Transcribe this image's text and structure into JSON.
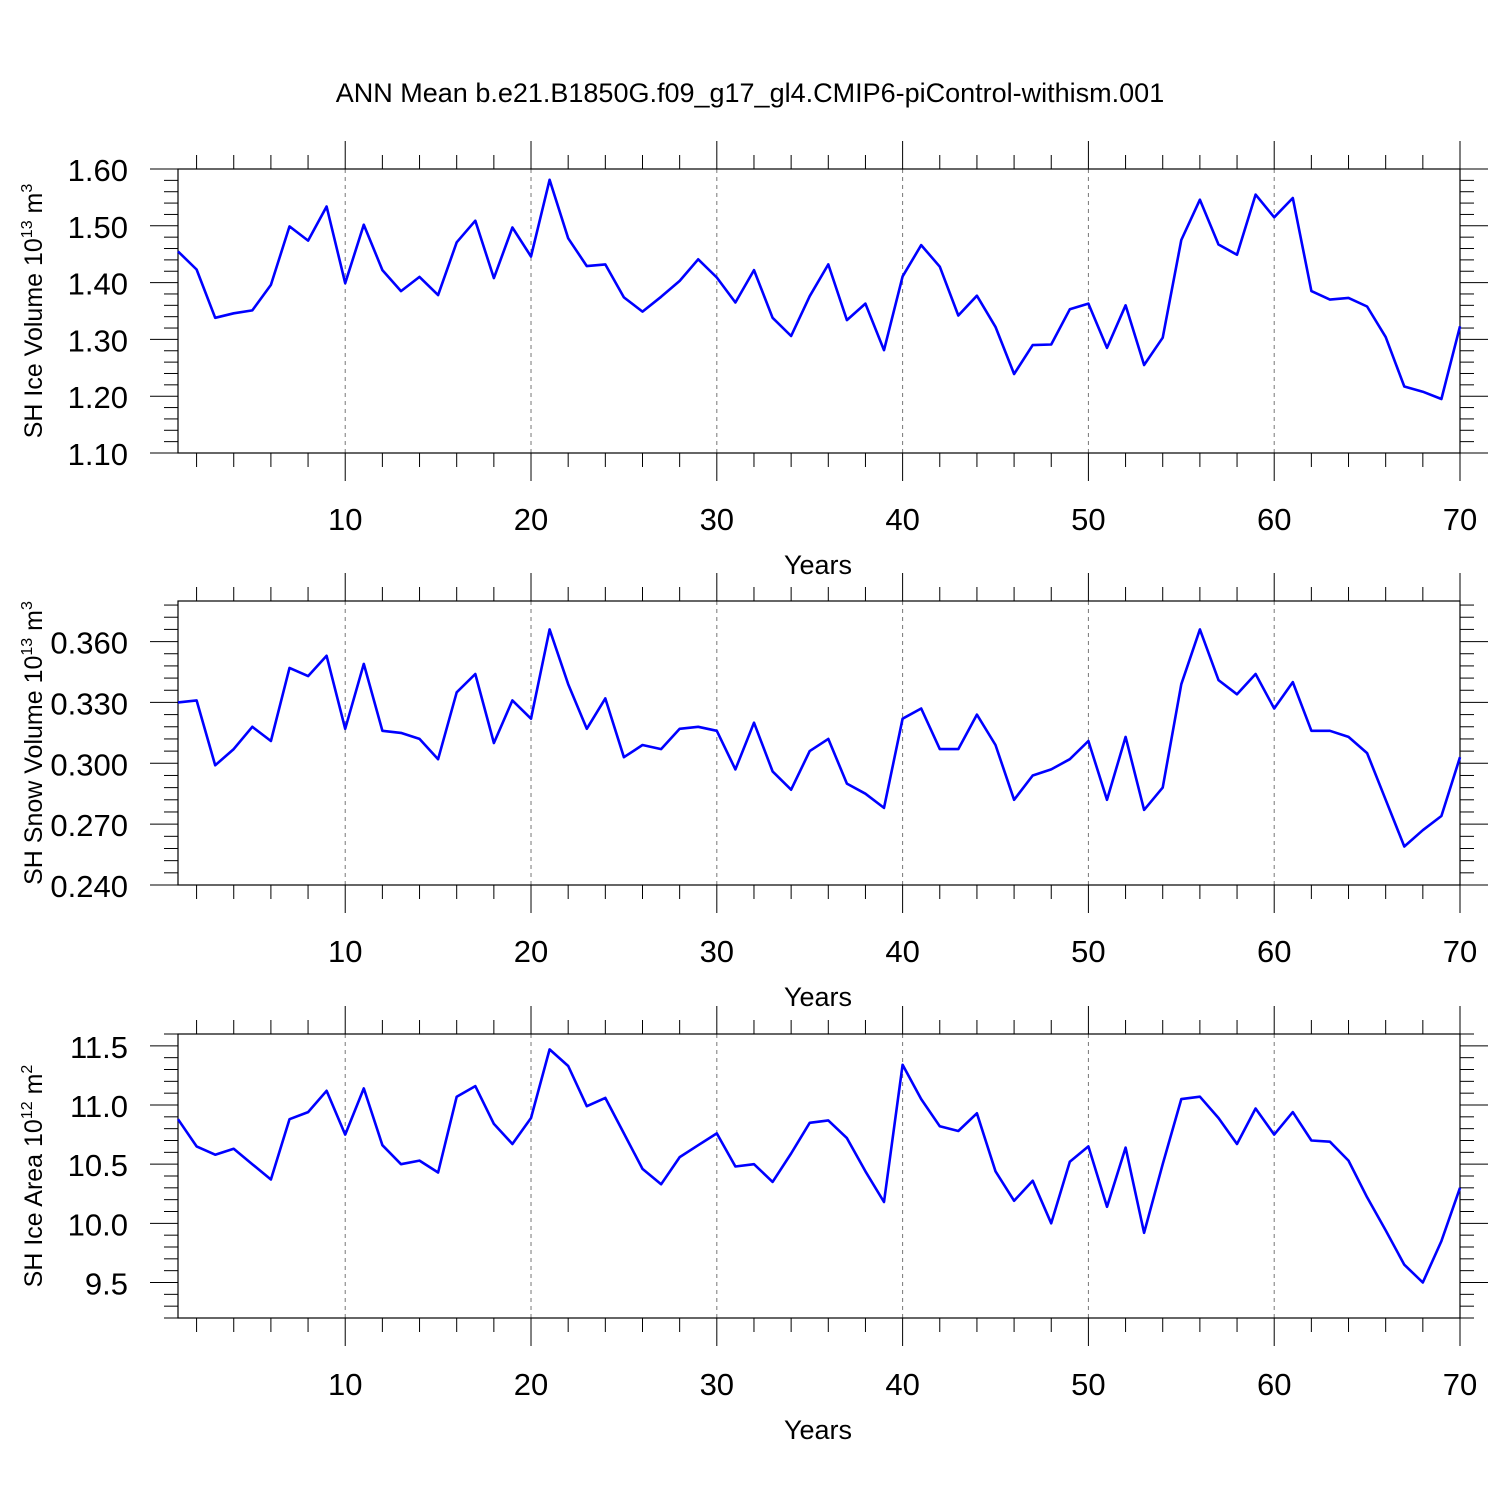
{
  "title": "ANN Mean b.e21.B1850G.f09_g17_gl4.CMIP6-piControl-withism.001",
  "line_color": "#0000ff",
  "chart_data": [
    {
      "type": "line",
      "xlabel": "Years",
      "ylabel": "SH Ice Volume 10",
      "ylabel_sup1": "13",
      "ylabel_mid": " m",
      "ylabel_sup2": "3",
      "xlim": [
        1,
        70
      ],
      "ylim": [
        1.1,
        1.6
      ],
      "xticks": [
        10,
        20,
        30,
        40,
        50,
        60,
        70
      ],
      "yticks": [
        1.1,
        1.2,
        1.3,
        1.4,
        1.5,
        1.6
      ],
      "ytick_labels": [
        "1.10",
        "1.20",
        "1.30",
        "1.40",
        "1.50",
        "1.60"
      ],
      "grid": "vertical dashed at major x ticks",
      "x": [
        1,
        2,
        3,
        4,
        5,
        6,
        7,
        8,
        9,
        10,
        11,
        12,
        13,
        14,
        15,
        16,
        17,
        18,
        19,
        20,
        21,
        22,
        23,
        24,
        25,
        26,
        27,
        28,
        29,
        30,
        31,
        32,
        33,
        34,
        35,
        36,
        37,
        38,
        39,
        40,
        41,
        42,
        43,
        44,
        45,
        46,
        47,
        48,
        49,
        50,
        51,
        52,
        53,
        54,
        55,
        56,
        57,
        58,
        59,
        60,
        61,
        62,
        63,
        64,
        65,
        66,
        67,
        68,
        69,
        70
      ],
      "values": [
        1.455,
        1.423,
        1.338,
        1.346,
        1.351,
        1.396,
        1.499,
        1.474,
        1.534,
        1.399,
        1.502,
        1.422,
        1.385,
        1.41,
        1.378,
        1.471,
        1.509,
        1.408,
        1.497,
        1.446,
        1.581,
        1.478,
        1.429,
        1.432,
        1.374,
        1.349,
        1.375,
        1.403,
        1.441,
        1.409,
        1.365,
        1.422,
        1.338,
        1.306,
        1.376,
        1.432,
        1.334,
        1.363,
        1.281,
        1.411,
        1.466,
        1.428,
        1.342,
        1.377,
        1.322,
        1.239,
        1.29,
        1.291,
        1.353,
        1.363,
        1.285,
        1.36,
        1.255,
        1.303,
        1.475,
        1.546,
        1.467,
        1.449,
        1.555,
        1.515,
        1.549,
        1.385,
        1.37,
        1.373,
        1.358,
        1.304,
        1.217,
        1.208,
        1.195,
        1.323
      ]
    },
    {
      "type": "line",
      "xlabel": "Years",
      "ylabel": "SH Snow Volume 10",
      "ylabel_sup1": "13",
      "ylabel_mid": " m",
      "ylabel_sup2": "3",
      "xlim": [
        1,
        70
      ],
      "ylim": [
        0.24,
        0.38
      ],
      "xticks": [
        10,
        20,
        30,
        40,
        50,
        60,
        70
      ],
      "yticks": [
        0.24,
        0.27,
        0.3,
        0.33,
        0.36
      ],
      "ytick_labels": [
        "0.240",
        "0.270",
        "0.300",
        "0.330",
        "0.360"
      ],
      "grid": "vertical dashed at major x ticks",
      "x": [
        1,
        2,
        3,
        4,
        5,
        6,
        7,
        8,
        9,
        10,
        11,
        12,
        13,
        14,
        15,
        16,
        17,
        18,
        19,
        20,
        21,
        22,
        23,
        24,
        25,
        26,
        27,
        28,
        29,
        30,
        31,
        32,
        33,
        34,
        35,
        36,
        37,
        38,
        39,
        40,
        41,
        42,
        43,
        44,
        45,
        46,
        47,
        48,
        49,
        50,
        51,
        52,
        53,
        54,
        55,
        56,
        57,
        58,
        59,
        60,
        61,
        62,
        63,
        64,
        65,
        66,
        67,
        68,
        69,
        70
      ],
      "values": [
        0.33,
        0.331,
        0.299,
        0.307,
        0.318,
        0.311,
        0.347,
        0.343,
        0.353,
        0.317,
        0.349,
        0.316,
        0.315,
        0.312,
        0.302,
        0.335,
        0.344,
        0.31,
        0.331,
        0.322,
        0.366,
        0.339,
        0.317,
        0.332,
        0.303,
        0.309,
        0.307,
        0.317,
        0.318,
        0.316,
        0.297,
        0.32,
        0.296,
        0.287,
        0.306,
        0.312,
        0.29,
        0.285,
        0.278,
        0.322,
        0.327,
        0.307,
        0.307,
        0.324,
        0.309,
        0.282,
        0.294,
        0.297,
        0.302,
        0.311,
        0.282,
        0.313,
        0.277,
        0.288,
        0.339,
        0.366,
        0.341,
        0.334,
        0.344,
        0.327,
        0.34,
        0.316,
        0.316,
        0.313,
        0.305,
        0.282,
        0.259,
        0.267,
        0.274,
        0.303
      ]
    },
    {
      "type": "line",
      "xlabel": "Years",
      "ylabel": "SH Ice Area 10",
      "ylabel_sup1": "12",
      "ylabel_mid": " m",
      "ylabel_sup2": "2",
      "xlim": [
        1,
        70
      ],
      "ylim": [
        9.2,
        11.6
      ],
      "xticks": [
        10,
        20,
        30,
        40,
        50,
        60,
        70
      ],
      "yticks": [
        9.5,
        10.0,
        10.5,
        11.0,
        11.5
      ],
      "ytick_labels": [
        "9.5",
        "10.0",
        "10.5",
        "11.0",
        "11.5"
      ],
      "grid": "vertical dashed at major x ticks",
      "x": [
        1,
        2,
        3,
        4,
        5,
        6,
        7,
        8,
        9,
        10,
        11,
        12,
        13,
        14,
        15,
        16,
        17,
        18,
        19,
        20,
        21,
        22,
        23,
        24,
        25,
        26,
        27,
        28,
        29,
        30,
        31,
        32,
        33,
        34,
        35,
        36,
        37,
        38,
        39,
        40,
        41,
        42,
        43,
        44,
        45,
        46,
        47,
        48,
        49,
        50,
        51,
        52,
        53,
        54,
        55,
        56,
        57,
        58,
        59,
        60,
        61,
        62,
        63,
        64,
        65,
        66,
        67,
        68,
        69,
        70
      ],
      "values": [
        10.88,
        10.65,
        10.58,
        10.63,
        10.5,
        10.37,
        10.88,
        10.94,
        11.12,
        10.75,
        11.14,
        10.66,
        10.5,
        10.53,
        10.43,
        11.07,
        11.16,
        10.84,
        10.67,
        10.89,
        11.47,
        11.33,
        10.99,
        11.06,
        10.76,
        10.46,
        10.33,
        10.56,
        10.66,
        10.76,
        10.48,
        10.5,
        10.35,
        10.59,
        10.85,
        10.87,
        10.72,
        10.44,
        10.18,
        11.34,
        11.05,
        10.82,
        10.78,
        10.93,
        10.44,
        10.19,
        10.36,
        10.0,
        10.52,
        10.65,
        10.14,
        10.64,
        9.92,
        10.5,
        11.05,
        11.07,
        10.89,
        10.67,
        10.97,
        10.75,
        10.94,
        10.7,
        10.69,
        10.53,
        10.22,
        9.94,
        9.65,
        9.5,
        9.85,
        10.3
      ]
    }
  ]
}
